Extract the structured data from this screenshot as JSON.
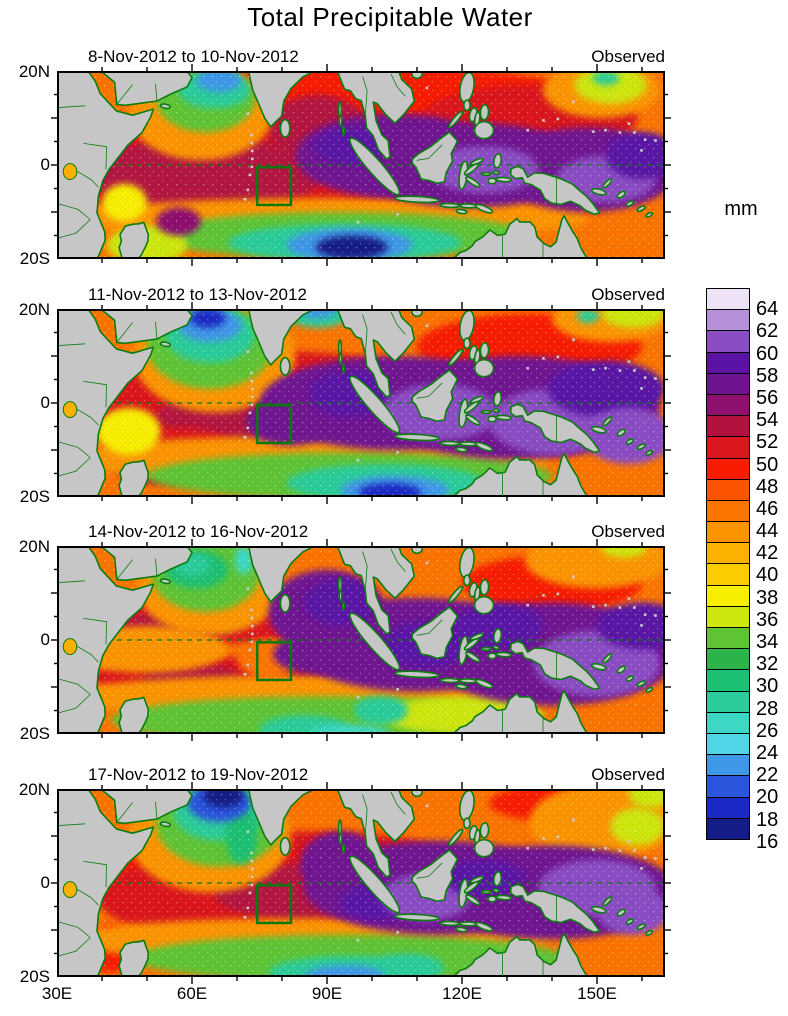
{
  "title": "Total Precipitable Water",
  "chart_data": {
    "type": "heatmap",
    "title": "Total Precipitable Water",
    "unit": "mm",
    "lon_range": [
      "30E",
      "165E"
    ],
    "lat_range": [
      "20S",
      "20N"
    ],
    "x_tick_labels": [
      "30E",
      "60E",
      "90E",
      "120E",
      "150E"
    ],
    "y_tick_labels": [
      "20N",
      "0",
      "20S"
    ],
    "land_color": "#c6c6c6",
    "coast_color": "#0b7c10",
    "colorbar": {
      "unit": "mm",
      "orientation": "vertical",
      "position": "right",
      "tick_labels": [
        64,
        62,
        60,
        58,
        56,
        54,
        52,
        50,
        48,
        46,
        44,
        42,
        40,
        38,
        36,
        34,
        32,
        30,
        28,
        26,
        24,
        22,
        20,
        18,
        16
      ],
      "colors": [
        "#eee3f6",
        "#b58fd8",
        "#8b4dc3",
        "#5a13a5",
        "#701391",
        "#8f106e",
        "#b3123f",
        "#da161f",
        "#f81c03",
        "#fc5400",
        "#fc7400",
        "#fc9400",
        "#fcb000",
        "#fccc00",
        "#f8ee00",
        "#cde60e",
        "#5ec434",
        "#2cb44a",
        "#1cc072",
        "#2ccc9a",
        "#3cd8c4",
        "#50d4e6",
        "#3f97e8",
        "#2b55dd",
        "#1b2ac4",
        "#131c87"
      ]
    },
    "equator_line": {
      "lat": 0,
      "style": "dashed",
      "color": "#0d7a12"
    },
    "annotation_box": {
      "lon_min": 74.5,
      "lon_max": 82,
      "lat_min": -8.5,
      "lat_max": -0.5,
      "color": "#0a7a0f"
    },
    "panels": [
      {
        "period": "8-Nov-2012 to 10-Nov-2012",
        "source": "Observed",
        "base_mm": 45,
        "blobs": [
          [
            100,
            13,
            52,
            8,
            49
          ],
          [
            135,
            10,
            24,
            7,
            51
          ],
          [
            70,
            0,
            42,
            12,
            51
          ],
          [
            63,
            -2,
            26,
            8,
            53
          ],
          [
            88,
            8,
            11,
            7,
            53
          ],
          [
            110,
            -10,
            13,
            3.5,
            49
          ],
          [
            90,
            -11.5,
            58,
            4.5,
            43
          ],
          [
            62,
            11,
            16,
            10,
            43
          ],
          [
            151,
            16,
            13,
            6,
            43
          ],
          [
            93,
            -15,
            42,
            5,
            33
          ],
          [
            50,
            -17,
            9,
            4,
            35
          ],
          [
            45,
            -8,
            5,
            4,
            37
          ],
          [
            63,
            14,
            11,
            7,
            33
          ],
          [
            153,
            17,
            8,
            4,
            35
          ],
          [
            94,
            -16.5,
            26,
            4,
            27
          ],
          [
            65,
            16,
            8,
            4,
            27
          ],
          [
            152,
            18.5,
            3,
            1.5,
            27
          ],
          [
            95,
            -17,
            14,
            3.5,
            21
          ],
          [
            66,
            18,
            5,
            2.5,
            21
          ],
          [
            95.5,
            -17.5,
            8,
            2.5,
            15
          ],
          [
            105,
            2,
            22,
            9,
            57
          ],
          [
            122,
            0,
            26,
            9,
            57
          ],
          [
            148,
            -1,
            20,
            9,
            57
          ],
          [
            95,
            4,
            8,
            4,
            59
          ],
          [
            125,
            -1,
            12,
            5,
            61
          ],
          [
            152,
            -3,
            11,
            5,
            61
          ],
          [
            160,
            2,
            8,
            5,
            59
          ],
          [
            57,
            -12,
            5,
            3,
            55
          ]
        ]
      },
      {
        "period": "11-Nov-2012 to 13-Nov-2012",
        "source": "Observed",
        "base_mm": 45,
        "blobs": [
          [
            55,
            1,
            22,
            6,
            49
          ],
          [
            135,
            12,
            25,
            7,
            49
          ],
          [
            80,
            -1,
            40,
            12,
            51
          ],
          [
            80,
            -3,
            28,
            7,
            53
          ],
          [
            55,
            -11,
            16,
            6,
            51
          ],
          [
            52,
            -13,
            9,
            4,
            53
          ],
          [
            138,
            -8,
            10,
            4,
            47
          ],
          [
            85,
            -12,
            55,
            5,
            43
          ],
          [
            65,
            10,
            18,
            12,
            43
          ],
          [
            153,
            18,
            13,
            5,
            43
          ],
          [
            95,
            -15.5,
            45,
            5,
            33
          ],
          [
            46,
            -6,
            7,
            5,
            37
          ],
          [
            64,
            12,
            14,
            9,
            33
          ],
          [
            158,
            19,
            7,
            3,
            35
          ],
          [
            103,
            -17,
            22,
            4,
            27
          ],
          [
            64,
            14.5,
            10,
            6,
            27
          ],
          [
            88,
            19,
            7,
            3,
            27
          ],
          [
            148,
            18.5,
            2.5,
            1.5,
            27
          ],
          [
            105,
            -18.5,
            12,
            3,
            21
          ],
          [
            64,
            16.5,
            7,
            3.5,
            21
          ],
          [
            88,
            20,
            4,
            2,
            21
          ],
          [
            104,
            -19,
            7,
            2,
            17
          ],
          [
            63.5,
            18,
            4,
            2,
            17
          ],
          [
            105,
            0,
            30,
            10,
            57
          ],
          [
            132,
            -1,
            32,
            11,
            57
          ],
          [
            82,
            -4,
            10,
            5,
            57
          ],
          [
            95,
            2,
            9,
            5,
            59
          ],
          [
            115,
            -2,
            13,
            6,
            61
          ],
          [
            140,
            -4,
            14,
            7,
            61
          ],
          [
            152,
            3,
            13,
            6,
            59
          ],
          [
            157,
            -7,
            10,
            6,
            61
          ]
        ]
      },
      {
        "period": "14-Nov-2012 to 16-Nov-2012",
        "source": "Observed",
        "base_mm": 45,
        "blobs": [
          [
            60,
            4,
            28,
            5,
            51
          ],
          [
            57,
            3,
            14,
            3,
            53
          ],
          [
            140,
            12,
            20,
            6,
            49
          ],
          [
            75,
            -8,
            40,
            4.5,
            51
          ],
          [
            60,
            -8,
            11,
            3,
            53
          ],
          [
            95,
            -8,
            12,
            3,
            53
          ],
          [
            50,
            -2,
            18,
            5,
            43
          ],
          [
            77,
            -4,
            7,
            4,
            45
          ],
          [
            85,
            -12,
            55,
            4.5,
            43
          ],
          [
            64,
            11,
            16,
            10,
            43
          ],
          [
            150,
            17,
            16,
            6,
            43
          ],
          [
            90,
            -17,
            48,
            5,
            33
          ],
          [
            120,
            -16,
            18,
            4,
            35
          ],
          [
            63,
            14,
            12,
            8,
            33
          ],
          [
            156,
            19.5,
            5,
            2,
            35
          ],
          [
            61,
            15,
            7,
            4,
            29
          ],
          [
            85,
            -19,
            10,
            3,
            27
          ],
          [
            102,
            -15,
            6,
            3,
            27
          ],
          [
            95,
            -20,
            9,
            2,
            25
          ],
          [
            60,
            16,
            4,
            2.5,
            27
          ],
          [
            71.5,
            17,
            2,
            3,
            25
          ],
          [
            90,
            6,
            13,
            9,
            57
          ],
          [
            110,
            -1,
            28,
            10,
            57
          ],
          [
            140,
            -3,
            28,
            11,
            57
          ],
          [
            86,
            -3,
            8,
            4,
            57
          ],
          [
            93,
            8,
            8,
            5,
            59
          ],
          [
            112,
            -1,
            10,
            5,
            59
          ],
          [
            128,
            3,
            10,
            5,
            59
          ],
          [
            150,
            -5,
            14,
            7,
            61
          ],
          [
            160,
            3,
            10,
            5,
            59
          ]
        ]
      },
      {
        "period": "17-Nov-2012 to 19-Nov-2012",
        "source": "Observed",
        "base_mm": 45,
        "blobs": [
          [
            85,
            5,
            33,
            6,
            51
          ],
          [
            55,
            2,
            20,
            5,
            49
          ],
          [
            75,
            -3,
            36,
            10,
            51
          ],
          [
            85,
            -2,
            20,
            6,
            53
          ],
          [
            42,
            -14,
            6,
            5,
            49
          ],
          [
            142,
            17,
            16,
            4,
            49
          ],
          [
            135,
            -7,
            11,
            4,
            47
          ],
          [
            85,
            -12,
            55,
            4.5,
            43
          ],
          [
            64,
            10,
            18,
            12,
            43
          ],
          [
            151,
            13,
            16,
            8,
            43
          ],
          [
            95,
            -16,
            48,
            5,
            33
          ],
          [
            66,
            12.5,
            14,
            9,
            33
          ],
          [
            159,
            12,
            6,
            4,
            35
          ],
          [
            162,
            19,
            5,
            3,
            35
          ],
          [
            95,
            -19,
            18,
            3.5,
            27
          ],
          [
            66,
            15,
            10,
            6,
            27
          ],
          [
            108,
            -18,
            8,
            3,
            27
          ],
          [
            71,
            10,
            3.5,
            6,
            29
          ],
          [
            94,
            -20,
            9,
            2.5,
            21
          ],
          [
            66,
            17,
            7,
            4,
            19
          ],
          [
            67,
            18.5,
            4.5,
            2.5,
            15
          ],
          [
            93,
            4,
            9,
            7,
            57
          ],
          [
            115,
            -1,
            30,
            10,
            57
          ],
          [
            140,
            -2,
            28,
            10,
            57
          ],
          [
            101,
            -4,
            8,
            4,
            59
          ],
          [
            112,
            -3,
            10,
            5,
            61
          ],
          [
            125,
            1,
            9,
            4,
            59
          ],
          [
            150,
            -1,
            13,
            6,
            61
          ],
          [
            158,
            -6,
            8,
            5,
            61
          ]
        ]
      }
    ]
  }
}
